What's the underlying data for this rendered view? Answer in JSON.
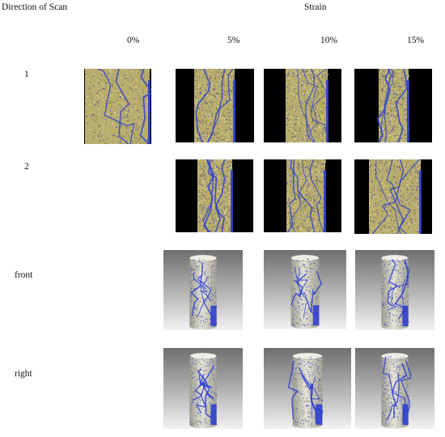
{
  "header": {
    "row_label_title": "Direction of Scan",
    "group_title": "Strain"
  },
  "columns": [
    "0%",
    "5%",
    "10%",
    "15%"
  ],
  "rows": [
    {
      "label": "1",
      "images": [
        "ct-slice",
        "ct-slice",
        "ct-slice",
        "ct-slice"
      ]
    },
    {
      "label": "2",
      "images": [
        "",
        "ct-slice",
        "ct-slice",
        "ct-slice"
      ]
    },
    {
      "label": "front",
      "images": [
        "",
        "3d-cylinder",
        "3d-cylinder",
        "3d-cylinder"
      ]
    },
    {
      "label": "right",
      "images": [
        "",
        "3d-cylinder",
        "3d-cylinder",
        "3d-cylinder"
      ]
    }
  ],
  "colors": {
    "crack": "#2a3bd0",
    "specimen": "#b9ad6e",
    "background": "#000000"
  }
}
